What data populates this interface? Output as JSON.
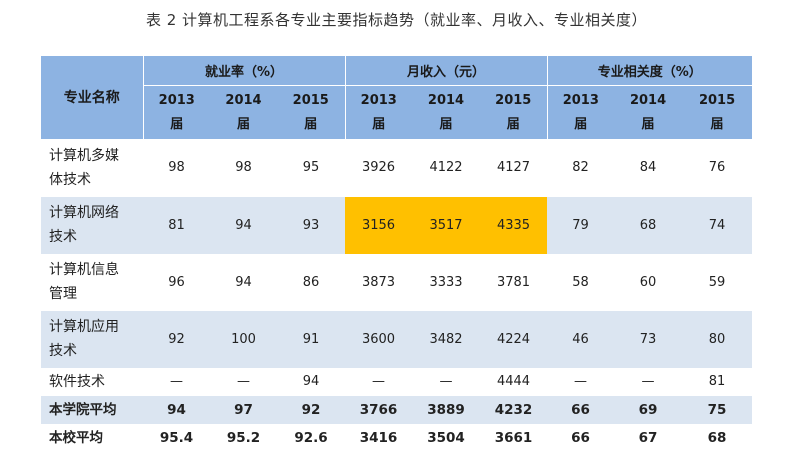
{
  "title": "表 2  计算机工程系各专业主要指标趋势（就业率、月收入、专业相关度）",
  "header": {
    "name_col": "专业名称",
    "groups": [
      "就业率（%）",
      "月收入（元）",
      "专业相关度（%）"
    ],
    "years": [
      "2013",
      "2014",
      "2015"
    ],
    "year_suffix": "届"
  },
  "rows": [
    {
      "name_line1": "计算机多媒",
      "name_line2": "体技术",
      "values": [
        "98",
        "98",
        "95",
        "3926",
        "4122",
        "4127",
        "82",
        "84",
        "76"
      ]
    },
    {
      "name_line1": "计算机网络",
      "name_line2": "技术",
      "values": [
        "81",
        "94",
        "93",
        "3156",
        "3517",
        "4335",
        "79",
        "68",
        "74"
      ]
    },
    {
      "name_line1": "计算机信息",
      "name_line2": "管理",
      "values": [
        "96",
        "94",
        "86",
        "3873",
        "3333",
        "3781",
        "58",
        "60",
        "59"
      ]
    },
    {
      "name_line1": "计算机应用",
      "name_line2": "技术",
      "values": [
        "92",
        "100",
        "91",
        "3600",
        "3482",
        "4224",
        "46",
        "73",
        "80"
      ]
    },
    {
      "name_line1": "软件技术",
      "name_line2": "",
      "values": [
        "—",
        "—",
        "94",
        "—",
        "—",
        "4444",
        "—",
        "—",
        "81"
      ]
    },
    {
      "name_line1": "本学院平均",
      "name_line2": "",
      "values": [
        "94",
        "97",
        "92",
        "3766",
        "3889",
        "4232",
        "66",
        "69",
        "75"
      ]
    },
    {
      "name_line1": "本校平均",
      "name_line2": "",
      "values": [
        "95.4",
        "95.2",
        "92.6",
        "3416",
        "3504",
        "3661",
        "66",
        "67",
        "68"
      ]
    }
  ],
  "colors": {
    "header_bg": "#8db3e2",
    "row_alt_bg": "#dbe5f1",
    "highlight": "#ffc000"
  }
}
